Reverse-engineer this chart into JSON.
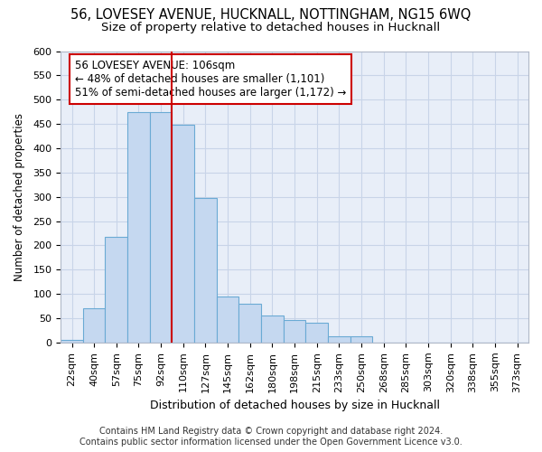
{
  "title": "56, LOVESEY AVENUE, HUCKNALL, NOTTINGHAM, NG15 6WQ",
  "subtitle": "Size of property relative to detached houses in Hucknall",
  "xlabel": "Distribution of detached houses by size in Hucknall",
  "ylabel": "Number of detached properties",
  "categories": [
    "22sqm",
    "40sqm",
    "57sqm",
    "75sqm",
    "92sqm",
    "110sqm",
    "127sqm",
    "145sqm",
    "162sqm",
    "180sqm",
    "198sqm",
    "215sqm",
    "233sqm",
    "250sqm",
    "268sqm",
    "285sqm",
    "303sqm",
    "320sqm",
    "338sqm",
    "355sqm",
    "373sqm"
  ],
  "values": [
    5,
    70,
    218,
    475,
    475,
    448,
    297,
    95,
    80,
    55,
    47,
    41,
    13,
    13,
    0,
    0,
    0,
    0,
    0,
    0,
    0
  ],
  "bar_color": "#c5d8f0",
  "bar_edge_color": "#6aaad4",
  "vline_x_between": 4.5,
  "annotation_line1": "56 LOVESEY AVENUE: 106sqm",
  "annotation_line2": "← 48% of detached houses are smaller (1,101)",
  "annotation_line3": "51% of semi-detached houses are larger (1,172) →",
  "annotation_box_facecolor": "#ffffff",
  "annotation_box_edgecolor": "#cc0000",
  "vline_color": "#cc0000",
  "grid_color": "#c8d4e8",
  "bg_color": "#e8eef8",
  "ylim": [
    0,
    600
  ],
  "yticks": [
    0,
    50,
    100,
    150,
    200,
    250,
    300,
    350,
    400,
    450,
    500,
    550,
    600
  ],
  "footer_line1": "Contains HM Land Registry data © Crown copyright and database right 2024.",
  "footer_line2": "Contains public sector information licensed under the Open Government Licence v3.0.",
  "title_fontsize": 10.5,
  "subtitle_fontsize": 9.5,
  "xlabel_fontsize": 9,
  "ylabel_fontsize": 8.5,
  "tick_fontsize": 8,
  "annotation_fontsize": 8.5,
  "footer_fontsize": 7
}
